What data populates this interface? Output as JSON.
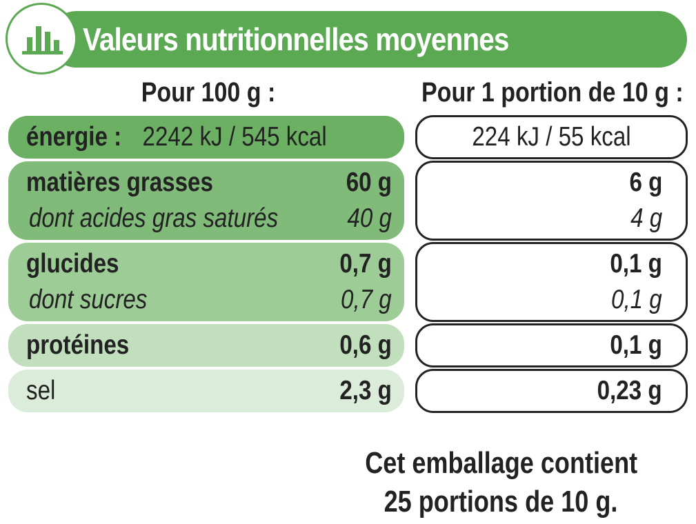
{
  "header": {
    "title": "Valeurs nutritionnelles moyennes",
    "icon": "bar-chart-icon"
  },
  "columns": {
    "per_100g": "Pour 100 g :",
    "per_portion": "Pour 1 portion de 10 g :"
  },
  "rows": {
    "energy": {
      "label": "énergie :",
      "value_100g": "2242 kJ / 545 kcal",
      "value_portion": "224 kJ / 55 kcal"
    },
    "fat": {
      "label": "matières grasses",
      "value_100g": "60 g",
      "value_portion": "6 g",
      "sub_label": "dont acides gras saturés",
      "sub_value_100g": "40 g",
      "sub_value_portion": "4 g"
    },
    "carbs": {
      "label": "glucides",
      "value_100g": "0,7 g",
      "value_portion": "0,1 g",
      "sub_label": "dont sucres",
      "sub_value_100g": "0,7 g",
      "sub_value_portion": "0,1 g"
    },
    "protein": {
      "label": "protéines",
      "value_100g": "0,6 g",
      "value_portion": "0,1 g"
    },
    "salt": {
      "label": "sel",
      "value_100g": "2,3 g",
      "value_portion": "0,23 g"
    }
  },
  "footer": {
    "line1": "Cet emballage contient",
    "line2": "25 portions de 10 g."
  },
  "colors": {
    "brand_green": "#5ba952",
    "energy_bg": "#6cb064",
    "fat_bg": "#80bb79",
    "carbs_bg": "#9dcc97",
    "protein_bg": "#c1dfbd",
    "salt_bg": "#dcecda",
    "text": "#222222"
  }
}
